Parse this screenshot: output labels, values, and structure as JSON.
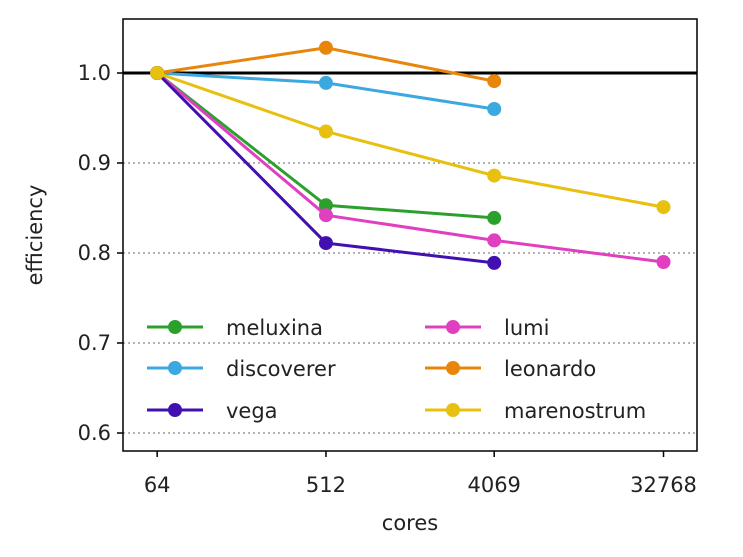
{
  "chart_data": {
    "type": "line",
    "xlabel": "cores",
    "ylabel": "efficiency",
    "x_ticks": [
      "64",
      "512",
      "4069",
      "32768"
    ],
    "x_scale": "log",
    "ylim": [
      0.58,
      1.06
    ],
    "y_ticks": [
      0.6,
      0.7,
      0.8,
      0.9,
      1.0
    ],
    "y_tick_labels": [
      "0.6",
      "0.7",
      "0.8",
      "0.9",
      "1.0"
    ],
    "reference_line": 1.0,
    "grid": "dotted horizontal at y ticks",
    "legend_position": "lower-left",
    "series": [
      {
        "name": "meluxina",
        "color": "#2ca02c",
        "x": [
          64,
          512,
          4069
        ],
        "y": [
          1.0,
          0.853,
          0.839
        ]
      },
      {
        "name": "lumi",
        "color": "#e040c0",
        "x": [
          64,
          512,
          4069,
          32768
        ],
        "y": [
          1.0,
          0.842,
          0.814,
          0.79
        ]
      },
      {
        "name": "discoverer",
        "color": "#3ca8e0",
        "x": [
          64,
          512,
          4069
        ],
        "y": [
          1.0,
          0.989,
          0.96
        ]
      },
      {
        "name": "leonardo",
        "color": "#e8860c",
        "x": [
          64,
          512,
          4069
        ],
        "y": [
          1.0,
          1.028,
          0.991
        ]
      },
      {
        "name": "vega",
        "color": "#4210b0",
        "x": [
          64,
          512,
          4069
        ],
        "y": [
          1.0,
          0.811,
          0.789
        ]
      },
      {
        "name": "marenostrum",
        "color": "#e8c010",
        "x": [
          64,
          512,
          4069,
          32768
        ],
        "y": [
          1.0,
          0.935,
          0.886,
          0.851
        ]
      }
    ]
  }
}
